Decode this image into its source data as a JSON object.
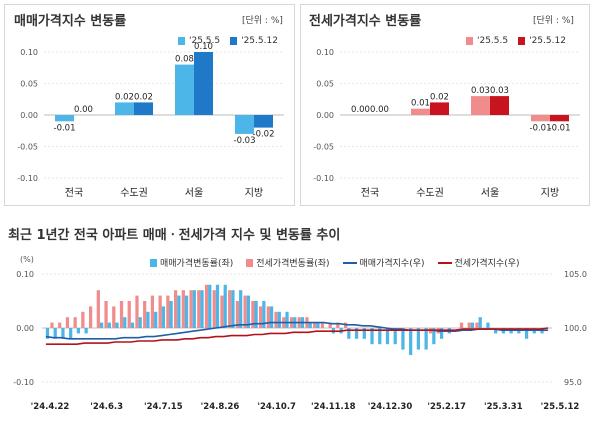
{
  "panels": [
    {
      "title": "매매가격지수 변동률",
      "unit": "[단위 : %]",
      "legend": [
        "'25.5.5",
        "'25.5.12"
      ]
    },
    {
      "title": "전세가격지수 변동률",
      "unit": "[단위 : %]",
      "legend": [
        "'25.5.5",
        "'25.5.12"
      ]
    }
  ],
  "heading": "최근 1년간 전국 아파트 매매ㆍ전세가격 지수 및 변동률 추이",
  "legend_bottom": [
    "매매가격변동률(좌)",
    "전세가격변동률(좌)",
    "매매가격지수(우)",
    "전세가격지수(우)"
  ],
  "colors": {
    "sale_light": "#4db6e8",
    "sale_dark": "#1f78c8",
    "rent_light": "#f08c8c",
    "rent_dark": "#c8141e",
    "sale_index": "#1f5fa8",
    "rent_index": "#b3121b"
  },
  "chart_data": [
    {
      "type": "bar",
      "title": "매매가격지수 변동률",
      "categories": [
        "전국",
        "수도권",
        "서울",
        "지방"
      ],
      "series": [
        {
          "name": "'25.5.5",
          "values": [
            -0.01,
            0.02,
            0.08,
            -0.03
          ],
          "labels": [
            "-0.01",
            "0.02",
            "0.08",
            "-0.03"
          ]
        },
        {
          "name": "'25.5.12",
          "values": [
            0.0,
            0.02,
            0.1,
            -0.02
          ],
          "labels": [
            "0.00",
            "0.02",
            "0.10",
            "-0.02"
          ]
        }
      ],
      "ylim": [
        -0.1,
        0.1
      ],
      "yticks": [
        "0.10",
        "0.05",
        "0.00",
        "-0.05",
        "-0.10"
      ],
      "grid": true
    },
    {
      "type": "bar",
      "title": "전세가격지수 변동률",
      "categories": [
        "전국",
        "수도권",
        "서울",
        "지방"
      ],
      "series": [
        {
          "name": "'25.5.5",
          "values": [
            0.0,
            0.01,
            0.03,
            -0.01
          ],
          "labels": [
            "0.00",
            "0.01",
            "0.03",
            "-0.01"
          ]
        },
        {
          "name": "'25.5.12",
          "values": [
            0.0,
            0.02,
            0.03,
            -0.01
          ],
          "labels": [
            "0.00",
            "0.02",
            "0.03",
            "-0.01"
          ]
        }
      ],
      "ylim": [
        -0.1,
        0.1
      ],
      "yticks": [
        "0.10",
        "0.05",
        "0.00",
        "-0.05",
        "-0.10"
      ],
      "grid": true
    },
    {
      "type": "bar",
      "title": "최근 1년간 전국 아파트 매매ㆍ전세가격 지수 및 변동률 추이",
      "ylabel_left": "(%)",
      "ylim_left": [
        -0.1,
        0.1
      ],
      "yticks_left": [
        "0.10",
        "0.00",
        "-0.10"
      ],
      "ylim_right": [
        95.0,
        105.0
      ],
      "yticks_right": [
        "105.0",
        "100.0",
        "95.0"
      ],
      "xticks": [
        "'24.4.22",
        "'24.6.3",
        "'24.7.15",
        "'24.8.26",
        "'24.10.7",
        "'24.11.18",
        "'24.12.30",
        "'25.2.17",
        "'25.3.31",
        "'25.5.12"
      ],
      "series": [
        {
          "name": "매매가격변동률(좌)",
          "type": "bar",
          "values": [
            -0.02,
            -0.02,
            -0.02,
            -0.02,
            -0.01,
            -0.01,
            0.0,
            0.01,
            0.01,
            0.01,
            0.02,
            0.01,
            0.02,
            0.03,
            0.03,
            0.04,
            0.05,
            0.06,
            0.06,
            0.07,
            0.07,
            0.08,
            0.08,
            0.08,
            0.07,
            0.07,
            0.06,
            0.05,
            0.05,
            0.04,
            0.03,
            0.03,
            0.02,
            0.02,
            0.01,
            0.01,
            0.0,
            -0.01,
            -0.01,
            -0.02,
            -0.02,
            -0.02,
            -0.03,
            -0.03,
            -0.03,
            -0.03,
            -0.04,
            -0.05,
            -0.04,
            -0.04,
            -0.03,
            -0.02,
            -0.01,
            0.0,
            0.0,
            0.01,
            0.02,
            0.01,
            -0.01,
            -0.01,
            -0.01,
            -0.01,
            -0.02,
            -0.01,
            -0.01,
            0.0
          ]
        },
        {
          "name": "전세가격변동률(좌)",
          "type": "bar",
          "values": [
            0.0,
            0.01,
            0.01,
            0.02,
            0.02,
            0.03,
            0.04,
            0.07,
            0.05,
            0.04,
            0.05,
            0.05,
            0.06,
            0.05,
            0.06,
            0.06,
            0.06,
            0.07,
            0.07,
            0.07,
            0.07,
            0.08,
            0.07,
            0.06,
            0.07,
            0.05,
            0.06,
            0.05,
            0.04,
            0.04,
            0.03,
            0.02,
            0.02,
            0.02,
            0.02,
            0.01,
            0.01,
            0.01,
            0.01,
            0.01,
            0.0,
            0.0,
            0.0,
            0.0,
            0.0,
            0.0,
            0.0,
            0.0,
            0.0,
            0.0,
            -0.01,
            -0.01,
            0.0,
            0.0,
            0.01,
            0.01,
            0.01,
            0.0,
            0.0,
            0.0,
            0.0,
            0.0,
            0.0,
            0.0,
            0.0,
            0.0
          ]
        },
        {
          "name": "매매가격지수(우)",
          "type": "line",
          "values": [
            99.2,
            99.1,
            99.1,
            99.0,
            99.0,
            99.0,
            99.0,
            99.0,
            99.0,
            99.0,
            99.1,
            99.1,
            99.1,
            99.2,
            99.2,
            99.3,
            99.4,
            99.5,
            99.6,
            99.7,
            99.8,
            99.9,
            100.0,
            100.1,
            100.2,
            100.3,
            100.3,
            100.4,
            100.4,
            100.5,
            100.5,
            100.5,
            100.5,
            100.5,
            100.5,
            100.5,
            100.5,
            100.4,
            100.4,
            100.3,
            100.3,
            100.2,
            100.2,
            100.1,
            100.0,
            99.9,
            99.9,
            99.8,
            99.8,
            99.8,
            99.8,
            99.7,
            99.7,
            99.7,
            99.8,
            99.8,
            99.9,
            99.9,
            99.9,
            99.8,
            99.8,
            99.8,
            99.8,
            99.8,
            99.8,
            99.8
          ]
        },
        {
          "name": "전세가격지수(우)",
          "type": "line",
          "values": [
            98.5,
            98.5,
            98.5,
            98.5,
            98.5,
            98.6,
            98.6,
            98.6,
            98.6,
            98.7,
            98.7,
            98.7,
            98.8,
            98.8,
            98.8,
            98.9,
            98.9,
            98.9,
            99.0,
            99.0,
            99.1,
            99.1,
            99.2,
            99.2,
            99.3,
            99.3,
            99.3,
            99.4,
            99.4,
            99.5,
            99.5,
            99.5,
            99.6,
            99.6,
            99.6,
            99.7,
            99.7,
            99.7,
            99.7,
            99.8,
            99.8,
            99.8,
            99.8,
            99.8,
            99.8,
            99.8,
            99.8,
            99.8,
            99.8,
            99.8,
            99.8,
            99.8,
            99.8,
            99.8,
            99.9,
            99.9,
            99.9,
            99.9,
            99.9,
            99.9,
            99.9,
            99.9,
            99.9,
            99.9,
            99.9,
            100.0
          ]
        }
      ]
    }
  ]
}
